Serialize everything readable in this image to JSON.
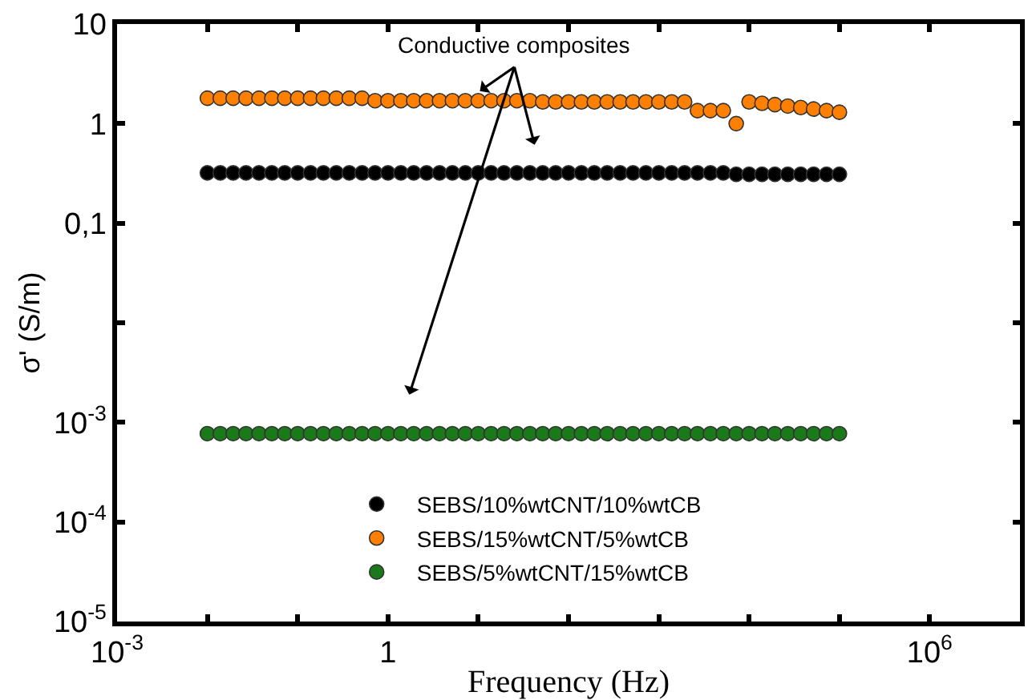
{
  "chart_data": {
    "type": "scatter",
    "xlabel": "Frequency (Hz)",
    "ylabel": "σ' (S/m)",
    "log": "xy",
    "marker": "circle",
    "legend": "bottom",
    "x": [
      0.01,
      0.0139,
      0.0193,
      0.0268,
      0.0373,
      0.0518,
      0.072,
      0.1,
      0.139,
      0.193,
      0.268,
      0.373,
      0.518,
      0.72,
      1,
      1.39,
      1.93,
      2.68,
      3.73,
      5.18,
      7.2,
      10,
      13.9,
      19.3,
      26.8,
      37.3,
      51.8,
      72,
      100,
      139,
      193,
      268,
      373,
      518,
      720,
      1000,
      1390,
      1930,
      2680,
      3730,
      5180,
      7200,
      10000,
      13900,
      19300,
      26800,
      37300,
      51800,
      72000,
      100000
    ],
    "xlim": [
      0.001,
      10000000
    ],
    "xticks": [
      {
        "value": 0.001,
        "label": "10$^{-3}$"
      },
      {
        "value": 0.01,
        "label": null
      },
      {
        "value": 0.1,
        "label": null
      },
      1,
      {
        "value": 10,
        "label": null
      },
      {
        "value": 100,
        "label": null
      },
      {
        "value": 1000,
        "label": null
      },
      {
        "value": 10000,
        "label": null
      },
      {
        "value": 100000,
        "label": null
      },
      {
        "value": 1000000,
        "label": "10$^{6}$"
      }
    ],
    "ylim": [
      1e-05,
      10
    ],
    "yticks": [
      {
        "value": 1e-05,
        "label": "10$^{-5}$"
      },
      {
        "value": 0.0001,
        "label": "10$^{-4}$"
      },
      {
        "value": 0.001,
        "label": "10$^{-3}$"
      },
      {
        "value": 0.01,
        "label": null
      },
      {
        "value": 0.1,
        "label": "0,1"
      },
      1,
      10
    ],
    "series": [
      {
        "name": "SEBS/10%wtCNT/10%wtCB",
        "color": "#000000",
        "values": [
          0.32,
          0.32,
          0.32,
          0.32,
          0.32,
          0.32,
          0.32,
          0.32,
          0.32,
          0.32,
          0.32,
          0.32,
          0.32,
          0.32,
          0.32,
          0.32,
          0.32,
          0.32,
          0.32,
          0.32,
          0.32,
          0.32,
          0.32,
          0.32,
          0.32,
          0.32,
          0.32,
          0.32,
          0.32,
          0.32,
          0.32,
          0.32,
          0.32,
          0.32,
          0.32,
          0.32,
          0.32,
          0.32,
          0.32,
          0.32,
          0.32,
          0.31,
          0.31,
          0.31,
          0.31,
          0.31,
          0.31,
          0.31,
          0.31,
          0.31
        ]
      },
      {
        "name": "SEBS/15%wtCNT/5%wtCB",
        "color": "#ff8000",
        "values": [
          1.8,
          1.8,
          1.8,
          1.8,
          1.8,
          1.8,
          1.8,
          1.8,
          1.8,
          1.8,
          1.8,
          1.8,
          1.8,
          1.7,
          1.7,
          1.7,
          1.7,
          1.7,
          1.7,
          1.7,
          1.7,
          1.7,
          1.7,
          1.7,
          1.7,
          1.7,
          1.65,
          1.65,
          1.65,
          1.65,
          1.65,
          1.65,
          1.65,
          1.65,
          1.65,
          1.65,
          1.65,
          1.65,
          1.35,
          1.35,
          1.35,
          1.0,
          1.65,
          1.6,
          1.55,
          1.5,
          1.45,
          1.4,
          1.35,
          1.3
        ]
      },
      {
        "name": "SEBS/5%wtCNT/15%wtCB",
        "color": "#1a7a1a",
        "values": [
          0.00077,
          0.00077,
          0.00077,
          0.00077,
          0.00077,
          0.00077,
          0.00077,
          0.00077,
          0.00077,
          0.00077,
          0.00077,
          0.00077,
          0.00077,
          0.00077,
          0.00077,
          0.00077,
          0.00077,
          0.00077,
          0.00077,
          0.00077,
          0.00077,
          0.00077,
          0.00077,
          0.00077,
          0.00077,
          0.00077,
          0.00077,
          0.00077,
          0.00077,
          0.00077,
          0.00077,
          0.00077,
          0.00077,
          0.00077,
          0.00077,
          0.00077,
          0.00077,
          0.00077,
          0.00077,
          0.00077,
          0.00077,
          0.00077,
          0.00077,
          0.00077,
          0.00077,
          0.00077,
          0.00077,
          0.00077,
          0.00077,
          0.00077
        ]
      }
    ],
    "annotations": [
      "Conductive composites"
    ]
  }
}
